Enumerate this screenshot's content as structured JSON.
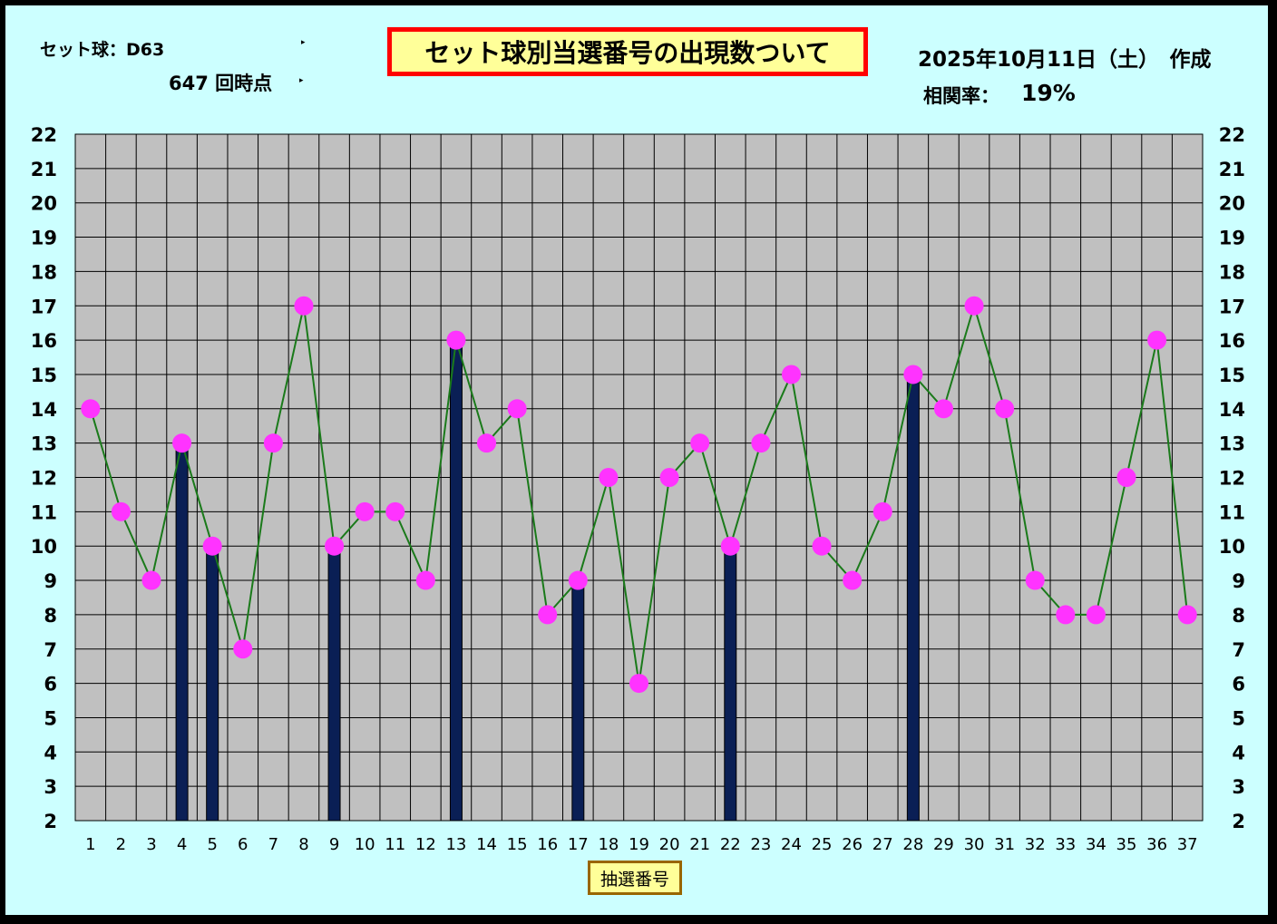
{
  "header": {
    "set_ball_label": "セット球：D63",
    "draw_point_label": "647 回時点",
    "date_label": "2025年10月11日（土）　作成",
    "correlation_label": "相関率：",
    "correlation_value": "19%"
  },
  "chart_data": {
    "type": "bar+line",
    "title": "セット球別当選番号の出現数ついて",
    "xlabel": "抽選番号",
    "ylabel": "",
    "ylim": [
      2,
      22
    ],
    "yticks": [
      2,
      3,
      4,
      5,
      6,
      7,
      8,
      9,
      10,
      11,
      12,
      13,
      14,
      15,
      16,
      17,
      18,
      19,
      20,
      21,
      22
    ],
    "categories": [
      "1",
      "2",
      "3",
      "4",
      "5",
      "6",
      "7",
      "8",
      "9",
      "10",
      "11",
      "12",
      "13",
      "14",
      "15",
      "16",
      "17",
      "18",
      "19",
      "20",
      "21",
      "22",
      "23",
      "24",
      "25",
      "26",
      "27",
      "28",
      "29",
      "30",
      "31",
      "32",
      "33",
      "34",
      "35",
      "36",
      "37"
    ],
    "line_series": {
      "values": [
        14,
        11,
        9,
        13,
        10,
        7,
        13,
        17,
        10,
        11,
        11,
        9,
        16,
        13,
        14,
        8,
        9,
        12,
        6,
        12,
        13,
        10,
        13,
        15,
        10,
        9,
        11,
        15,
        14,
        17,
        14,
        9,
        8,
        8,
        12,
        16,
        8
      ],
      "line_color": "#1a7a1a",
      "marker_color": "#ff33ff"
    },
    "bar_series": {
      "values": [
        null,
        null,
        null,
        13,
        10,
        null,
        null,
        null,
        10,
        null,
        null,
        null,
        16,
        null,
        null,
        null,
        9,
        null,
        null,
        null,
        null,
        10,
        null,
        null,
        null,
        null,
        null,
        15,
        null,
        null,
        null,
        null,
        null,
        null,
        null,
        null,
        null
      ],
      "color": "#0a1f55"
    },
    "plot_background": "#c0c0c0",
    "grid": true,
    "right_axis_mirrored": true
  }
}
